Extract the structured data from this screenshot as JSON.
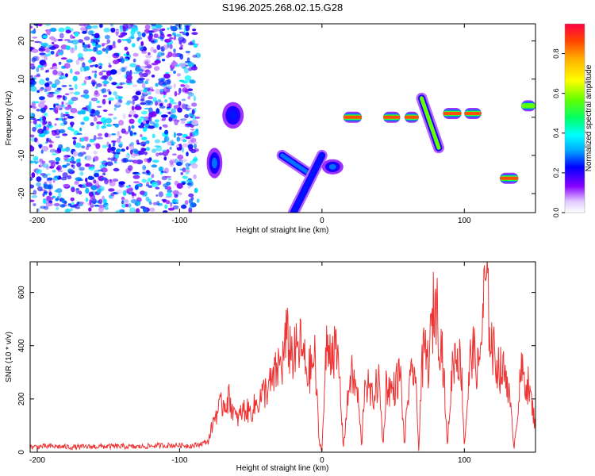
{
  "chart_data": [
    {
      "type": "heatmap",
      "title": "S196.2025.268.02.15.G28",
      "xlabel": "Height of straight line (km)",
      "ylabel": "Frequency (Hz)",
      "xlim": [
        -205,
        150
      ],
      "ylim": [
        -25,
        24.5
      ],
      "xticks": [
        -200,
        -100,
        0,
        100
      ],
      "yticks": [
        -20,
        -10,
        0,
        10,
        20
      ],
      "colorbar": {
        "label": "Normalized spectral amplitude",
        "range": [
          0.0,
          0.95
        ],
        "ticks": [
          0.0,
          0.2,
          0.4,
          0.6,
          0.8
        ]
      },
      "features": [
        {
          "x": [
            -205,
            -87
          ],
          "y": [
            -25,
            24.5
          ],
          "kind": "noise",
          "amplitude": 0.35
        },
        {
          "x": [
            -81,
            -70
          ],
          "y": [
            -16,
            -8
          ],
          "kind": "blob",
          "amplitude": 0.3
        },
        {
          "x": [
            -70,
            -55
          ],
          "y": [
            -3,
            4
          ],
          "kind": "blob",
          "amplitude": 0.25
        },
        {
          "x": [
            -28,
            -8
          ],
          "y": [
            -15,
            -10
          ],
          "kind": "track",
          "amplitude": 0.3
        },
        {
          "x": [
            -20,
            0
          ],
          "y": [
            -25,
            -10
          ],
          "kind": "track",
          "amplitude": 0.25
        },
        {
          "x": [
            0,
            15
          ],
          "y": [
            -15,
            -11
          ],
          "kind": "blob",
          "amplitude": 0.3
        },
        {
          "x": [
            15,
            28
          ],
          "y": [
            -1,
            1
          ],
          "kind": "line",
          "amplitude": 0.9
        },
        {
          "x": [
            43,
            55
          ],
          "y": [
            -1,
            1
          ],
          "kind": "line",
          "amplitude": 0.9
        },
        {
          "x": [
            58,
            68
          ],
          "y": [
            -1,
            1
          ],
          "kind": "line",
          "amplitude": 0.9
        },
        {
          "x": [
            70,
            82
          ],
          "y": [
            -8,
            5
          ],
          "kind": "track",
          "amplitude": 0.6
        },
        {
          "x": [
            85,
            98
          ],
          "y": [
            0,
            2
          ],
          "kind": "line",
          "amplitude": 0.9
        },
        {
          "x": [
            100,
            112
          ],
          "y": [
            0,
            2
          ],
          "kind": "line",
          "amplitude": 0.9
        },
        {
          "x": [
            125,
            138
          ],
          "y": [
            -17,
            -15
          ],
          "kind": "line",
          "amplitude": 0.9
        },
        {
          "x": [
            140,
            150
          ],
          "y": [
            2,
            4
          ],
          "kind": "line",
          "amplitude": 0.6
        }
      ]
    },
    {
      "type": "line",
      "xlabel": "Height of straight line (km)",
      "ylabel": "SNR (10 * v/v)",
      "xlim": [
        -205,
        150
      ],
      "ylim": [
        0,
        715
      ],
      "xticks": [
        -200,
        -100,
        0,
        100
      ],
      "yticks": [
        0,
        200,
        400,
        600
      ],
      "color": "#ee3333",
      "x": [
        -205,
        -190,
        -175,
        -160,
        -145,
        -130,
        -115,
        -100,
        -90,
        -80,
        -75,
        -70,
        -65,
        -60,
        -55,
        -50,
        -45,
        -40,
        -35,
        -30,
        -28,
        -25,
        -20,
        -15,
        -10,
        -5,
        -2,
        0,
        3,
        8,
        12,
        15,
        20,
        25,
        28,
        30,
        35,
        40,
        43,
        45,
        50,
        55,
        58,
        60,
        65,
        68,
        70,
        72,
        75,
        78,
        80,
        82,
        85,
        88,
        92,
        95,
        98,
        100,
        105,
        110,
        115,
        118,
        120,
        125,
        130,
        135,
        140,
        145,
        150
      ],
      "y": [
        20,
        22,
        19,
        21,
        22,
        20,
        25,
        26,
        24,
        40,
        140,
        180,
        200,
        120,
        160,
        150,
        190,
        230,
        260,
        330,
        330,
        430,
        360,
        400,
        290,
        350,
        40,
        10,
        380,
        400,
        310,
        20,
        300,
        220,
        15,
        280,
        200,
        270,
        20,
        250,
        230,
        300,
        20,
        200,
        330,
        10,
        300,
        380,
        330,
        520,
        580,
        470,
        360,
        20,
        350,
        380,
        310,
        20,
        400,
        300,
        650,
        470,
        380,
        310,
        290,
        20,
        300,
        250,
        100
      ]
    }
  ]
}
